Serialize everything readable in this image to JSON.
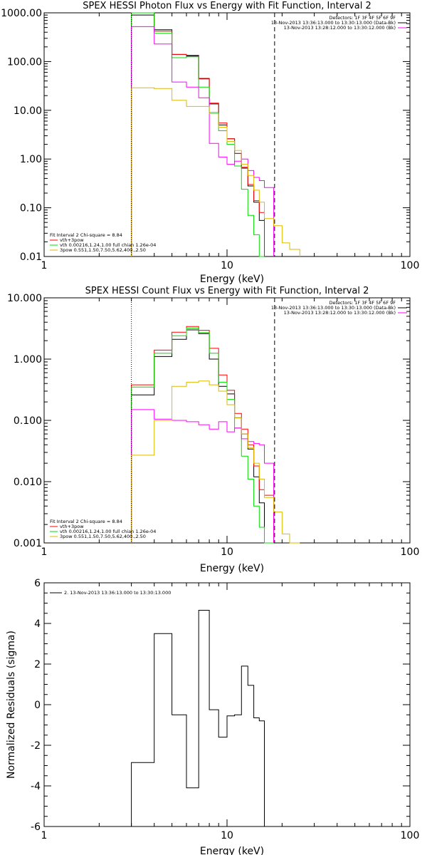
{
  "chart_data": [
    {
      "type": "line",
      "title": "SPEX HESSI Photon Flux vs Energy with Fit Function, Interval 2",
      "xlabel": "Energy (keV)",
      "ylabel": "",
      "xscale": "log",
      "yscale": "log",
      "xlim": [
        1,
        100
      ],
      "ylim": [
        0.01,
        1000
      ],
      "x_ticks": [
        "1",
        "10",
        "100"
      ],
      "y_ticks": [
        "0.01",
        "0.10",
        "1.00",
        "10.00",
        "100.00",
        "1000.00"
      ],
      "vlines": [
        {
          "x": 3,
          "style": "dotted"
        },
        {
          "x": 18.2,
          "style": "dashed"
        }
      ],
      "info_text": [
        "Detectors: 1F 3F 4F 5F 6F 9F",
        "13-Nov-2013 13:36:13.000 to 13:30:13.000 (Data-Bk)",
        "13-Nov-2013 13:28:12.000 to 13:30:12.000 (Bk)"
      ],
      "info_colors": [
        "",
        "#000000",
        "#ff00ff"
      ],
      "legend_text": [
        "Fit Interval 2   Chi-square = 8.84",
        "vth+3pow",
        "vth 0.00216,1.24,1.00  full chian 1.26e-04",
        "3pow 0.551,1.50,7.50,5.62,400.,2.50"
      ],
      "legend_colors": [
        "",
        "#ff0000",
        "#00dd00",
        "#ddbb00"
      ],
      "edges": [
        3,
        4,
        5,
        6,
        7,
        8,
        9,
        10,
        11,
        12,
        13,
        14,
        15,
        16,
        18,
        20,
        22,
        25
      ],
      "series": [
        {
          "color": "#000000",
          "values": [
            900,
            450,
            140,
            130,
            45,
            13.5,
            5,
            2.6,
            1.3,
            0.65,
            0.28,
            0.13,
            0.055,
            null,
            null,
            null,
            null
          ]
        },
        {
          "color": "#ff0000",
          "values": [
            1100,
            420,
            140,
            135,
            44,
            14,
            5.5,
            2.6,
            1.3,
            0.68,
            0.3,
            0.14,
            0.08,
            null,
            null,
            null,
            null
          ]
        },
        {
          "color": "#00dd00",
          "values": [
            1050,
            380,
            120,
            125,
            30,
            9,
            3.8,
            2.0,
            0.72,
            0.24,
            0.07,
            0.028,
            0.005,
            null,
            null,
            null,
            null
          ]
        },
        {
          "color": "#ff00ff",
          "values": [
            520,
            230,
            38,
            30,
            18,
            2.1,
            1.1,
            0.78,
            0.9,
            1.0,
            0.58,
            0.42,
            0.36,
            0.26,
            null,
            null,
            null
          ]
        },
        {
          "color": "#ddbb00",
          "values": [
            29,
            28,
            16,
            12,
            12,
            8.5,
            4.5,
            2.3,
            1.5,
            0.78,
            0.46,
            0.23,
            0.13,
            0.06,
            0.043,
            0.019,
            0.014
          ]
        }
      ]
    },
    {
      "type": "line",
      "title": "SPEX HESSI Count Flux vs Energy with Fit Function, Interval 2",
      "xlabel": "Energy (keV)",
      "ylabel": "",
      "xscale": "log",
      "yscale": "log",
      "xlim": [
        1,
        100
      ],
      "ylim": [
        0.001,
        10
      ],
      "x_ticks": [
        "1",
        "10",
        "100"
      ],
      "y_ticks": [
        "0.001",
        "0.010",
        "0.100",
        "1.000",
        "10.000"
      ],
      "vlines": [
        {
          "x": 3,
          "style": "dotted"
        },
        {
          "x": 18.2,
          "style": "dashed"
        }
      ],
      "info_text": [
        "Detectors: 1F 3F 4F 5F 6F 9F",
        "13-Nov-2013 13:36:13.000 to 13:30:13.000 (Data-Bk)",
        "13-Nov-2013 13:28:12.000 to 13:30:12.000 (Bk)"
      ],
      "info_colors": [
        "",
        "#000000",
        "#ff00ff"
      ],
      "legend_text": [
        "Fit Interval 2   Chi-square = 8.84",
        "vth+3pow",
        "vth 0.00216,1.24,1.00  full chian 1.26e-04",
        "3pow 0.551,1.50,7.50,5.62,400.,2.50"
      ],
      "legend_colors": [
        "",
        "#ff0000",
        "#00dd00",
        "#ddbb00"
      ],
      "edges": [
        3,
        4,
        5,
        6,
        7,
        8,
        9,
        10,
        11,
        12,
        13,
        14,
        15,
        16,
        18,
        20,
        22,
        25
      ],
      "series": [
        {
          "color": "#000000",
          "values": [
            0.26,
            1.1,
            2.1,
            3.0,
            2.6,
            1.0,
            0.36,
            0.27,
            0.11,
            0.06,
            0.034,
            0.012,
            0.0045,
            0.001,
            null,
            null,
            null
          ]
        },
        {
          "color": "#ff0000",
          "values": [
            0.38,
            1.4,
            2.75,
            3.4,
            2.95,
            1.5,
            0.55,
            0.31,
            0.13,
            0.072,
            0.04,
            0.018,
            0.0074,
            0.006,
            null,
            null,
            null
          ]
        },
        {
          "color": "#00dd00",
          "values": [
            0.35,
            1.25,
            2.4,
            3.2,
            2.7,
            1.25,
            0.42,
            0.22,
            0.075,
            0.026,
            0.011,
            0.004,
            0.0018,
            0.001,
            null,
            null,
            null
          ]
        },
        {
          "color": "#ff00ff",
          "values": [
            0.15,
            0.105,
            0.1,
            0.095,
            0.085,
            0.072,
            0.095,
            0.065,
            0.075,
            0.05,
            0.045,
            0.042,
            0.04,
            0.02,
            null,
            null,
            null
          ]
        },
        {
          "color": "#ddbb00",
          "values": [
            0.027,
            0.1,
            0.36,
            0.42,
            0.44,
            0.38,
            0.3,
            0.18,
            0.11,
            0.06,
            0.036,
            0.02,
            0.011,
            0.0055,
            0.0032,
            0.0014,
            0.001
          ]
        }
      ]
    },
    {
      "type": "line",
      "title": "",
      "xlabel": "Energy (keV)",
      "ylabel": "Normalized Residuals (sigma)",
      "xscale": "log",
      "yscale": "linear",
      "xlim": [
        1,
        100
      ],
      "ylim": [
        -6,
        6
      ],
      "x_ticks": [
        "1",
        "10",
        "100"
      ],
      "y_ticks": [
        "-6",
        "-4",
        "-2",
        "0",
        "2",
        "4",
        "6"
      ],
      "legend_text": [
        "2. 13-Nov-2013 13:36:13.000 to 13:30:13.000"
      ],
      "legend_colors": [
        "#000000"
      ],
      "edges": [
        3,
        4,
        5,
        6,
        7,
        8,
        9,
        10,
        11,
        12,
        13,
        14,
        15,
        16,
        18
      ],
      "series": [
        {
          "color": "#000000",
          "values": [
            -2.85,
            3.5,
            -0.5,
            -4.1,
            4.65,
            -0.25,
            -1.6,
            -0.55,
            -0.5,
            1.9,
            0.95,
            -0.65,
            -0.8,
            null
          ]
        }
      ]
    }
  ]
}
